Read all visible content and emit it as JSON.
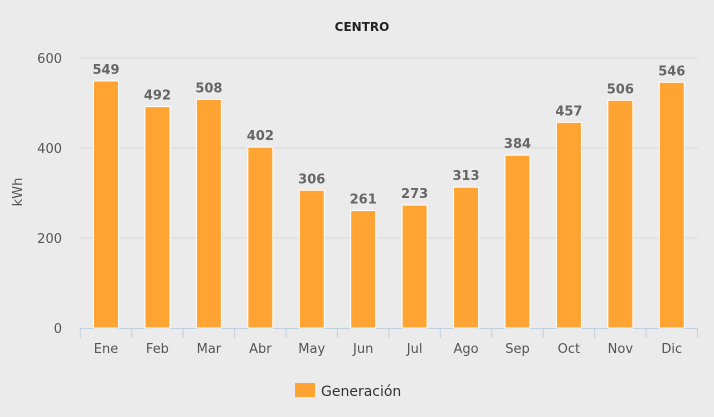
{
  "chart_data": {
    "type": "bar",
    "title": "CENTRO",
    "xlabel": "",
    "ylabel": "kWh",
    "categories": [
      "Ene",
      "Feb",
      "Mar",
      "Abr",
      "May",
      "Jun",
      "Jul",
      "Ago",
      "Sep",
      "Oct",
      "Nov",
      "Dic"
    ],
    "series": [
      {
        "name": "Generación",
        "values": [
          549,
          492,
          508,
          402,
          306,
          261,
          273,
          313,
          384,
          457,
          506,
          546
        ],
        "color": "#ffa333"
      }
    ],
    "ylim": [
      0,
      600
    ],
    "yticks": [
      0,
      200,
      400,
      600
    ],
    "grid": true,
    "legend": "bottom",
    "data_labels": true
  }
}
